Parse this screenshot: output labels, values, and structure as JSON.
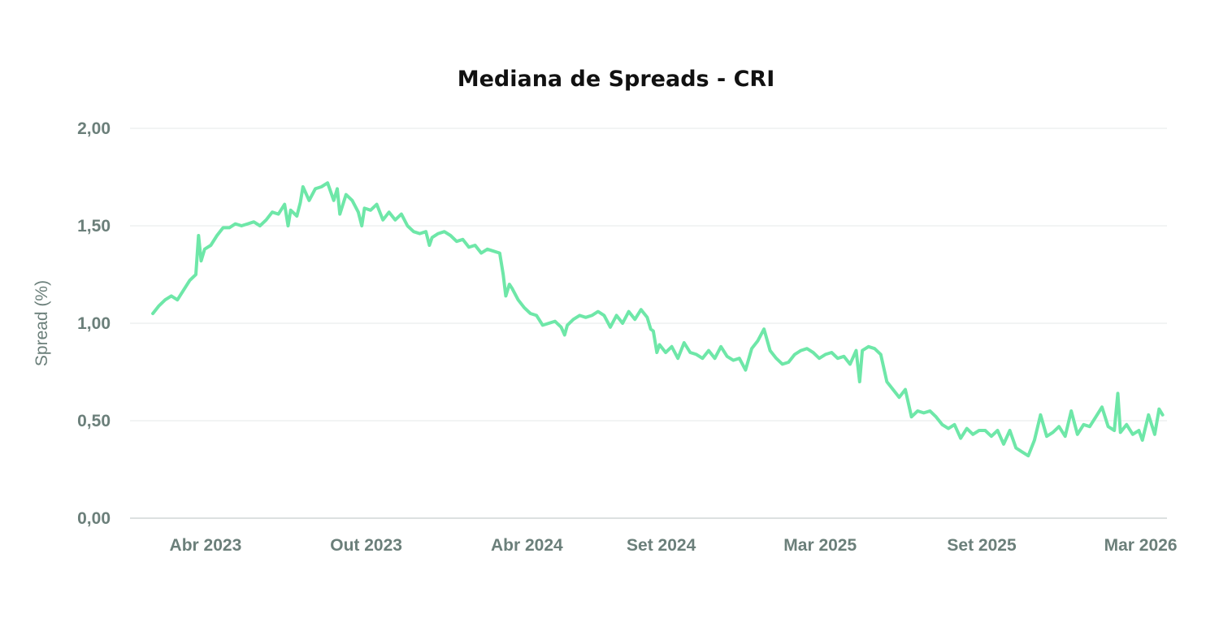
{
  "chart_data": {
    "type": "line",
    "title": "Mediana de Spreads - CRI",
    "xlabel": "",
    "ylabel": "Spread (%)",
    "ylim": [
      0,
      2
    ],
    "yticks": [
      {
        "value": 0,
        "label": "0,00"
      },
      {
        "value": 0.5,
        "label": "0,50"
      },
      {
        "value": 1.0,
        "label": "1,00"
      },
      {
        "value": 1.5,
        "label": "1,50"
      },
      {
        "value": 2.0,
        "label": "2,00"
      }
    ],
    "xlim": [
      "2023-01-05",
      "2026-03-31"
    ],
    "xticks": [
      {
        "date": "2023-04-01",
        "label": "Abr 2023"
      },
      {
        "date": "2023-10-01",
        "label": "Out 2023"
      },
      {
        "date": "2024-04-01",
        "label": "Abr 2024"
      },
      {
        "date": "2024-09-01",
        "label": "Set 2024"
      },
      {
        "date": "2025-03-01",
        "label": "Mar 2025"
      },
      {
        "date": "2025-09-01",
        "label": "Set 2025"
      },
      {
        "date": "2026-03-01",
        "label": "Mar 2026"
      }
    ],
    "grid": true,
    "legend": "none",
    "line_color": "#6ee7a8",
    "series": [
      {
        "values": [
          [
            "2023-01-31",
            1.05
          ],
          [
            "2023-02-07",
            1.09
          ],
          [
            "2023-02-14",
            1.12
          ],
          [
            "2023-02-21",
            1.14
          ],
          [
            "2023-02-28",
            1.12
          ],
          [
            "2023-03-07",
            1.17
          ],
          [
            "2023-03-14",
            1.22
          ],
          [
            "2023-03-21",
            1.25
          ],
          [
            "2023-03-24",
            1.45
          ],
          [
            "2023-03-27",
            1.32
          ],
          [
            "2023-03-31",
            1.38
          ],
          [
            "2023-04-07",
            1.4
          ],
          [
            "2023-04-14",
            1.45
          ],
          [
            "2023-04-21",
            1.49
          ],
          [
            "2023-04-28",
            1.49
          ],
          [
            "2023-05-05",
            1.51
          ],
          [
            "2023-05-12",
            1.5
          ],
          [
            "2023-05-19",
            1.51
          ],
          [
            "2023-05-26",
            1.52
          ],
          [
            "2023-06-02",
            1.5
          ],
          [
            "2023-06-09",
            1.53
          ],
          [
            "2023-06-16",
            1.57
          ],
          [
            "2023-06-23",
            1.56
          ],
          [
            "2023-06-30",
            1.61
          ],
          [
            "2023-07-04",
            1.5
          ],
          [
            "2023-07-07",
            1.58
          ],
          [
            "2023-07-14",
            1.55
          ],
          [
            "2023-07-18",
            1.62
          ],
          [
            "2023-07-21",
            1.7
          ],
          [
            "2023-07-28",
            1.63
          ],
          [
            "2023-08-04",
            1.69
          ],
          [
            "2023-08-11",
            1.7
          ],
          [
            "2023-08-18",
            1.72
          ],
          [
            "2023-08-25",
            1.63
          ],
          [
            "2023-08-29",
            1.69
          ],
          [
            "2023-09-01",
            1.56
          ],
          [
            "2023-09-08",
            1.66
          ],
          [
            "2023-09-15",
            1.63
          ],
          [
            "2023-09-22",
            1.57
          ],
          [
            "2023-09-26",
            1.5
          ],
          [
            "2023-09-29",
            1.59
          ],
          [
            "2023-10-06",
            1.58
          ],
          [
            "2023-10-13",
            1.61
          ],
          [
            "2023-10-20",
            1.53
          ],
          [
            "2023-10-27",
            1.57
          ],
          [
            "2023-11-03",
            1.53
          ],
          [
            "2023-11-10",
            1.56
          ],
          [
            "2023-11-17",
            1.5
          ],
          [
            "2023-11-24",
            1.47
          ],
          [
            "2023-12-01",
            1.46
          ],
          [
            "2023-12-08",
            1.47
          ],
          [
            "2023-12-12",
            1.4
          ],
          [
            "2023-12-15",
            1.44
          ],
          [
            "2023-12-22",
            1.46
          ],
          [
            "2023-12-29",
            1.47
          ],
          [
            "2024-01-05",
            1.45
          ],
          [
            "2024-01-12",
            1.42
          ],
          [
            "2024-01-19",
            1.43
          ],
          [
            "2024-01-26",
            1.39
          ],
          [
            "2024-02-02",
            1.4
          ],
          [
            "2024-02-09",
            1.36
          ],
          [
            "2024-02-16",
            1.38
          ],
          [
            "2024-02-23",
            1.37
          ],
          [
            "2024-03-01",
            1.36
          ],
          [
            "2024-03-05",
            1.25
          ],
          [
            "2024-03-08",
            1.14
          ],
          [
            "2024-03-12",
            1.2
          ],
          [
            "2024-03-15",
            1.18
          ],
          [
            "2024-03-22",
            1.12
          ],
          [
            "2024-03-29",
            1.08
          ],
          [
            "2024-04-05",
            1.05
          ],
          [
            "2024-04-12",
            1.04
          ],
          [
            "2024-04-19",
            0.99
          ],
          [
            "2024-04-26",
            1.0
          ],
          [
            "2024-05-03",
            1.01
          ],
          [
            "2024-05-10",
            0.98
          ],
          [
            "2024-05-14",
            0.94
          ],
          [
            "2024-05-17",
            0.99
          ],
          [
            "2024-05-24",
            1.02
          ],
          [
            "2024-05-31",
            1.04
          ],
          [
            "2024-06-07",
            1.03
          ],
          [
            "2024-06-14",
            1.04
          ],
          [
            "2024-06-21",
            1.06
          ],
          [
            "2024-06-28",
            1.04
          ],
          [
            "2024-07-05",
            0.98
          ],
          [
            "2024-07-12",
            1.04
          ],
          [
            "2024-07-19",
            1.0
          ],
          [
            "2024-07-26",
            1.06
          ],
          [
            "2024-08-02",
            1.02
          ],
          [
            "2024-08-09",
            1.07
          ],
          [
            "2024-08-16",
            1.03
          ],
          [
            "2024-08-20",
            0.97
          ],
          [
            "2024-08-23",
            0.96
          ],
          [
            "2024-08-27",
            0.85
          ],
          [
            "2024-08-30",
            0.89
          ],
          [
            "2024-09-06",
            0.85
          ],
          [
            "2024-09-13",
            0.88
          ],
          [
            "2024-09-20",
            0.82
          ],
          [
            "2024-09-27",
            0.9
          ],
          [
            "2024-10-04",
            0.85
          ],
          [
            "2024-10-11",
            0.84
          ],
          [
            "2024-10-18",
            0.82
          ],
          [
            "2024-10-25",
            0.86
          ],
          [
            "2024-11-01",
            0.82
          ],
          [
            "2024-11-08",
            0.88
          ],
          [
            "2024-11-15",
            0.83
          ],
          [
            "2024-11-22",
            0.81
          ],
          [
            "2024-11-29",
            0.82
          ],
          [
            "2024-12-06",
            0.76
          ],
          [
            "2024-12-13",
            0.87
          ],
          [
            "2024-12-20",
            0.91
          ],
          [
            "2024-12-27",
            0.97
          ],
          [
            "2025-01-03",
            0.86
          ],
          [
            "2025-01-10",
            0.82
          ],
          [
            "2025-01-17",
            0.79
          ],
          [
            "2025-01-24",
            0.8
          ],
          [
            "2025-01-31",
            0.84
          ],
          [
            "2025-02-07",
            0.86
          ],
          [
            "2025-02-14",
            0.87
          ],
          [
            "2025-02-21",
            0.85
          ],
          [
            "2025-02-28",
            0.82
          ],
          [
            "2025-03-07",
            0.84
          ],
          [
            "2025-03-14",
            0.85
          ],
          [
            "2025-03-21",
            0.82
          ],
          [
            "2025-03-28",
            0.83
          ],
          [
            "2025-04-04",
            0.79
          ],
          [
            "2025-04-11",
            0.86
          ],
          [
            "2025-04-15",
            0.7
          ],
          [
            "2025-04-18",
            0.86
          ],
          [
            "2025-04-25",
            0.88
          ],
          [
            "2025-05-02",
            0.87
          ],
          [
            "2025-05-09",
            0.84
          ],
          [
            "2025-05-16",
            0.7
          ],
          [
            "2025-05-23",
            0.66
          ],
          [
            "2025-05-30",
            0.62
          ],
          [
            "2025-06-06",
            0.66
          ],
          [
            "2025-06-13",
            0.52
          ],
          [
            "2025-06-20",
            0.55
          ],
          [
            "2025-06-27",
            0.54
          ],
          [
            "2025-07-04",
            0.55
          ],
          [
            "2025-07-11",
            0.52
          ],
          [
            "2025-07-18",
            0.48
          ],
          [
            "2025-07-25",
            0.46
          ],
          [
            "2025-08-01",
            0.48
          ],
          [
            "2025-08-08",
            0.41
          ],
          [
            "2025-08-15",
            0.46
          ],
          [
            "2025-08-22",
            0.43
          ],
          [
            "2025-08-29",
            0.45
          ],
          [
            "2025-09-05",
            0.45
          ],
          [
            "2025-09-12",
            0.42
          ],
          [
            "2025-09-19",
            0.45
          ],
          [
            "2025-09-26",
            0.38
          ],
          [
            "2025-10-03",
            0.45
          ],
          [
            "2025-10-10",
            0.36
          ],
          [
            "2025-10-17",
            0.34
          ],
          [
            "2025-10-24",
            0.32
          ],
          [
            "2025-10-31",
            0.4
          ],
          [
            "2025-11-07",
            0.53
          ],
          [
            "2025-11-14",
            0.42
          ],
          [
            "2025-11-21",
            0.44
          ],
          [
            "2025-11-28",
            0.47
          ],
          [
            "2025-12-05",
            0.42
          ],
          [
            "2025-12-12",
            0.55
          ],
          [
            "2025-12-19",
            0.43
          ],
          [
            "2025-12-26",
            0.48
          ],
          [
            "2026-01-02",
            0.47
          ],
          [
            "2026-01-09",
            0.52
          ],
          [
            "2026-01-16",
            0.57
          ],
          [
            "2026-01-23",
            0.47
          ],
          [
            "2026-01-30",
            0.45
          ],
          [
            "2026-02-03",
            0.64
          ],
          [
            "2026-02-06",
            0.44
          ],
          [
            "2026-02-13",
            0.48
          ],
          [
            "2026-02-20",
            0.43
          ],
          [
            "2026-02-27",
            0.45
          ],
          [
            "2026-03-03",
            0.4
          ],
          [
            "2026-03-10",
            0.53
          ],
          [
            "2026-03-17",
            0.43
          ],
          [
            "2026-03-22",
            0.56
          ],
          [
            "2026-03-26",
            0.53
          ]
        ]
      }
    ]
  }
}
